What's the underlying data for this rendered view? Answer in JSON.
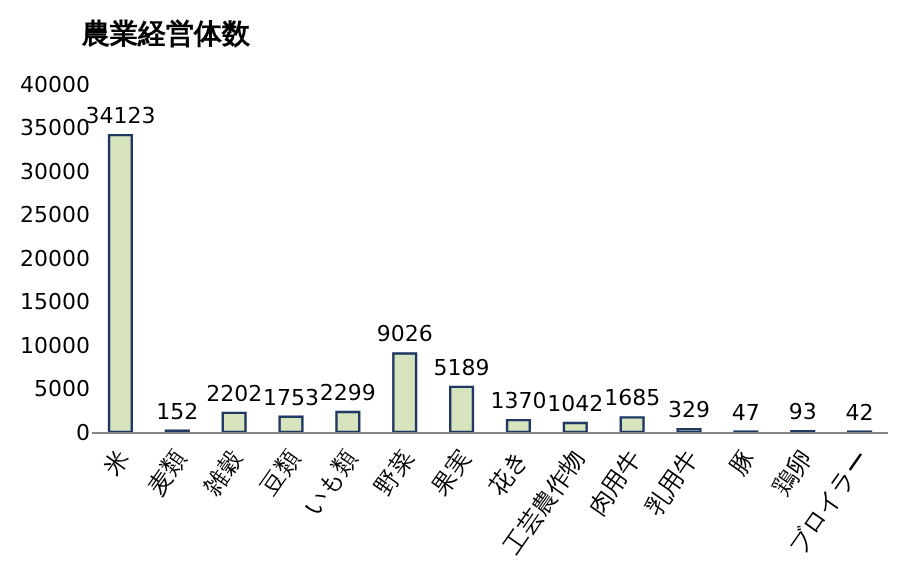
{
  "chart_data": {
    "type": "bar",
    "title": "農業経営体数",
    "categories": [
      "米",
      "麦類",
      "雑穀",
      "豆類",
      "いも類",
      "野菜",
      "果実",
      "花き",
      "工芸農作物",
      "肉用牛",
      "乳用牛",
      "豚",
      "鶏卵",
      "ブロイラー"
    ],
    "values": [
      34123,
      152,
      2202,
      1753,
      2299,
      9026,
      5189,
      1370,
      1042,
      1685,
      329,
      47,
      93,
      42
    ],
    "color": "#d7e4bd",
    "ylim": [
      0,
      40000
    ],
    "yticks": [
      0,
      5000,
      10000,
      15000,
      20000,
      25000,
      30000,
      35000,
      40000
    ],
    "data_labels": true
  }
}
